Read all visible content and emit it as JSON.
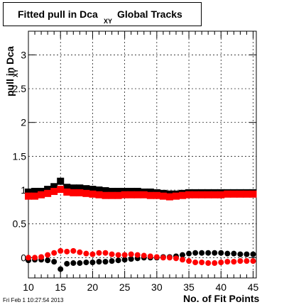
{
  "chart_data": {
    "type": "scatter",
    "title_main": "Fitted pull in Dca",
    "title_sub": "XY",
    "title_rest": "Global Tracks",
    "ylabel_main": "pull in Dca",
    "ylabel_sub": "XY",
    "xlabel": "No. of Fit Points",
    "xlim": [
      10,
      45.5
    ],
    "ylim": [
      -0.3,
      3.35
    ],
    "x_ticks": [
      10,
      15,
      20,
      25,
      30,
      35,
      40,
      45
    ],
    "y_ticks": [
      0,
      0.5,
      1,
      1.5,
      2,
      2.5,
      3
    ],
    "y_tick_labels": [
      "0",
      "0.5",
      "1",
      "1.5",
      "2",
      "2.5",
      "3"
    ],
    "x_tick_labels": [
      "10",
      "15",
      "20",
      "25",
      "30",
      "35",
      "40",
      "45"
    ],
    "grid": true,
    "colors": {
      "black_series": "#000000",
      "red_series": "#ff0000"
    },
    "series": [
      {
        "color": "black",
        "x": [
          10,
          11,
          12,
          13,
          14,
          15,
          16,
          17,
          18,
          19,
          20,
          21,
          22,
          23,
          24,
          25,
          26,
          27,
          28,
          29,
          30,
          31,
          32,
          33,
          34,
          35,
          36,
          37,
          38,
          39,
          40,
          41,
          42,
          43,
          44,
          45
        ],
        "y": [
          0.97,
          0.98,
          0.98,
          1.01,
          1.05,
          1.13,
          1.04,
          1.03,
          1.03,
          1.02,
          1.01,
          1.0,
          0.99,
          0.98,
          0.98,
          0.98,
          0.98,
          0.98,
          0.97,
          0.97,
          0.96,
          0.95,
          0.94,
          0.94,
          0.95,
          0.96,
          0.96,
          0.96,
          0.96,
          0.96,
          0.96,
          0.96,
          0.96,
          0.96,
          0.96,
          0.96
        ]
      },
      {
        "color": "red",
        "x": [
          10,
          11,
          12,
          13,
          14,
          15,
          16,
          17,
          18,
          19,
          20,
          21,
          22,
          23,
          24,
          25,
          26,
          27,
          28,
          29,
          30,
          31,
          32,
          33,
          34,
          35,
          36,
          37,
          38,
          39,
          40,
          41,
          42,
          43,
          44,
          45
        ],
        "y": [
          0.91,
          0.91,
          0.93,
          0.95,
          0.98,
          1.01,
          0.97,
          0.96,
          0.96,
          0.95,
          0.94,
          0.93,
          0.92,
          0.92,
          0.92,
          0.93,
          0.93,
          0.93,
          0.93,
          0.92,
          0.92,
          0.91,
          0.9,
          0.91,
          0.92,
          0.93,
          0.93,
          0.93,
          0.93,
          0.93,
          0.93,
          0.94,
          0.94,
          0.94,
          0.94,
          0.94
        ]
      },
      {
        "color": "black",
        "x": [
          10,
          11,
          12,
          13,
          14,
          15,
          16,
          17,
          18,
          19,
          20,
          21,
          22,
          23,
          24,
          25,
          26,
          27,
          28,
          29,
          30,
          31,
          32,
          33,
          34,
          35,
          36,
          37,
          38,
          39,
          40,
          41,
          42,
          43,
          44,
          45
        ],
        "y": [
          -0.04,
          -0.03,
          -0.03,
          -0.04,
          -0.06,
          -0.17,
          -0.09,
          -0.08,
          -0.08,
          -0.07,
          -0.07,
          -0.06,
          -0.06,
          -0.05,
          -0.04,
          -0.03,
          -0.02,
          -0.01,
          0.0,
          0.0,
          0.0,
          0.01,
          0.01,
          0.02,
          0.04,
          0.06,
          0.07,
          0.07,
          0.07,
          0.07,
          0.07,
          0.06,
          0.06,
          0.05,
          0.05,
          0.05
        ]
      },
      {
        "color": "red",
        "x": [
          10,
          11,
          12,
          13,
          14,
          15,
          16,
          17,
          18,
          19,
          20,
          21,
          22,
          23,
          24,
          25,
          26,
          27,
          28,
          29,
          30,
          31,
          32,
          33,
          34,
          35,
          36,
          37,
          38,
          39,
          40,
          41,
          42,
          43,
          44,
          45
        ],
        "y": [
          0.0,
          0.0,
          0.01,
          0.04,
          0.07,
          0.1,
          0.09,
          0.1,
          0.08,
          0.06,
          0.05,
          0.07,
          0.07,
          0.05,
          0.04,
          0.04,
          0.05,
          0.04,
          0.03,
          0.02,
          0.01,
          0.0,
          0.0,
          -0.01,
          -0.03,
          -0.05,
          -0.07,
          -0.07,
          -0.08,
          -0.08,
          -0.07,
          -0.06,
          -0.06,
          -0.05,
          -0.05,
          -0.05
        ]
      }
    ]
  },
  "footer": {
    "timestamp": "Fri Feb  1 10:27:54 2013"
  }
}
